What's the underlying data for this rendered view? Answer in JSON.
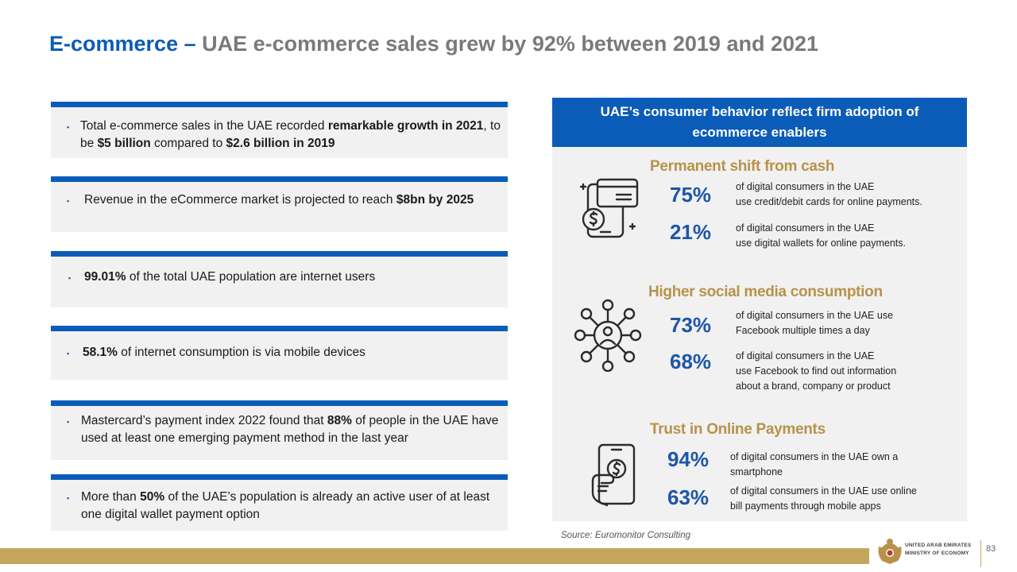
{
  "title": {
    "highlight": "E-commerce –",
    "rest": "UAE e-commerce sales grew by 92% between 2019 and 2021"
  },
  "cards": [
    {
      "bullet": "▪",
      "parts": [
        "Total e-commerce sales in the UAE recorded ",
        "remarkable growth in 2021",
        ", to be ",
        "$5 billion",
        " compared to ",
        "$2.6 billion in 2019"
      ]
    },
    {
      "bullet": "▪",
      "parts": [
        "Revenue in the eCommerce market is projected to reach ",
        "$8bn by 2025"
      ]
    },
    {
      "bullet": "▪",
      "parts": [
        "99.01%",
        " of the total UAE population are internet users"
      ]
    },
    {
      "bullet": "▪",
      "parts": [
        "58.1%",
        " of internet consumption is via mobile devices"
      ]
    },
    {
      "bullet": "▪",
      "parts": [
        "Mastercard’s payment index 2022 found that ",
        "88%",
        " of people in the UAE have used at least one emerging payment method in the last year"
      ]
    },
    {
      "bullet": "▪",
      "parts": [
        "More than ",
        "50%",
        " of the UAE’s population is already an active user of at least one digital wallet payment option"
      ]
    }
  ],
  "panel": {
    "heading_line1": "UAE’s consumer behavior reflect firm adoption of",
    "heading_line2": "ecommerce enablers",
    "sections": [
      {
        "title": "Permanent shift from cash",
        "icon": "card-payment-icon",
        "stats": [
          {
            "value": "75%",
            "line1": "of digital consumers in the UAE",
            "line2": "use credit/debit cards for online payments.",
            "line3": ""
          },
          {
            "value": "21%",
            "line1": "of digital consumers in the UAE",
            "line2": "use digital wallets for online payments.",
            "line3": ""
          }
        ]
      },
      {
        "title": "Higher social media consumption",
        "icon": "social-network-icon",
        "stats": [
          {
            "value": "73%",
            "line1": "of digital consumers in the UAE  use",
            "line2": "Facebook  multiple times a day",
            "line3": ""
          },
          {
            "value": "68%",
            "line1": "of digital consumers in the UAE",
            "line2": "use Facebook  to find out information",
            "line3": "about a brand, company or product"
          }
        ]
      },
      {
        "title": "Trust in Online Payments",
        "icon": "mobile-payment-icon",
        "stats": [
          {
            "value": "94%",
            "line1": "of digital consumers in the UAE  own a",
            "line2": "smartphone",
            "line3": ""
          },
          {
            "value": "63%",
            "line1": "of digital consumers in the UAE use online",
            "line2": "bill payments through mobile apps",
            "line3": ""
          }
        ]
      }
    ]
  },
  "source": "Source: Euromonitor Consulting",
  "footer": {
    "ministry_line1": "UNITED ARAB EMIRATES",
    "ministry_line2": "MINISTRY OF ECONOMY",
    "page_number": "83"
  },
  "colors": {
    "primary_blue": "#0b5cb8",
    "gold": "#c4a65e",
    "section_gold": "#b8924a",
    "stat_blue": "#1d56a8",
    "card_bg": "#f1f1f1"
  }
}
